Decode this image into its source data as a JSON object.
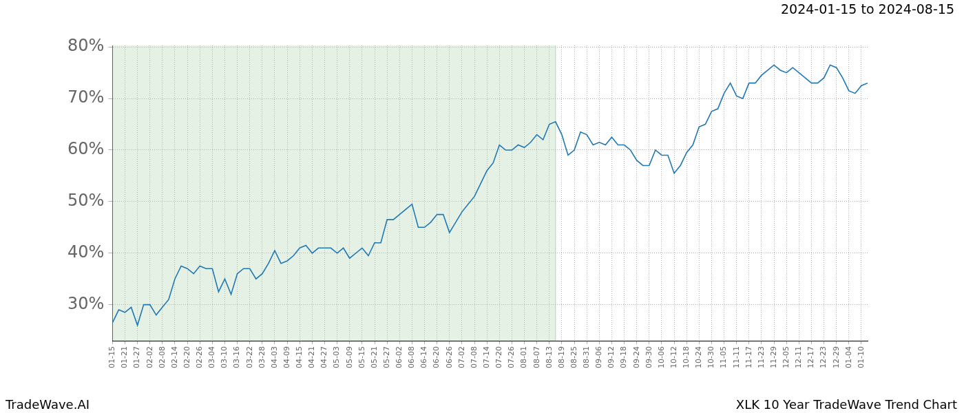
{
  "chart_data": {
    "type": "line",
    "title": "2024-01-15 to 2024-08-15",
    "footer_left": "TradeWave.AI",
    "footer_right": "XLK 10 Year TradeWave Trend Chart",
    "categories": [
      "01-15",
      null,
      "01-21",
      null,
      "01-27",
      null,
      "02-02",
      null,
      "02-08",
      null,
      "02-14",
      null,
      "02-20",
      null,
      "02-26",
      null,
      "03-04",
      null,
      "03-10",
      null,
      "03-16",
      null,
      "03-22",
      null,
      "03-28",
      null,
      "04-03",
      null,
      "04-09",
      null,
      "04-15",
      null,
      "04-21",
      null,
      "04-27",
      null,
      "05-03",
      null,
      "05-09",
      null,
      "05-15",
      null,
      "05-21",
      null,
      "05-27",
      null,
      "06-02",
      null,
      "06-08",
      null,
      "06-14",
      null,
      "06-20",
      null,
      "06-26",
      null,
      "07-02",
      null,
      "07-08",
      null,
      "07-14",
      null,
      "07-20",
      null,
      "07-26",
      null,
      "08-01",
      null,
      "08-07",
      null,
      "08-13",
      null,
      "08-19",
      null,
      "08-25",
      null,
      "08-31",
      null,
      "09-06",
      null,
      "09-12",
      null,
      "09-18",
      null,
      "09-24",
      null,
      "09-30",
      null,
      "10-06",
      null,
      "10-12",
      null,
      "10-18",
      null,
      "10-24",
      null,
      "10-30",
      null,
      "11-05",
      null,
      "11-11",
      null,
      "11-17",
      null,
      "11-23",
      null,
      "11-29",
      null,
      "12-05",
      null,
      "12-11",
      null,
      "12-17",
      null,
      "12-23",
      null,
      "12-29",
      null,
      "01-04",
      null,
      "01-10",
      null
    ],
    "values": [
      26.5,
      29,
      28.5,
      29.5,
      26,
      30,
      30,
      28,
      29.5,
      31,
      35,
      37.5,
      37,
      36,
      37.5,
      37,
      37,
      32.5,
      35,
      32,
      36,
      37,
      37,
      35,
      36,
      38,
      40.5,
      38,
      38.5,
      39.5,
      41,
      41.5,
      40,
      41,
      41,
      41,
      40,
      41,
      39,
      40,
      41,
      39.5,
      42,
      42,
      46.5,
      46.5,
      47.5,
      48.5,
      49.5,
      45,
      45,
      46,
      47.5,
      47.5,
      44,
      46,
      48,
      49.5,
      51,
      53.5,
      56,
      57.5,
      61,
      60,
      60,
      61,
      60.5,
      61.5,
      63,
      62,
      65,
      65.5,
      63,
      59,
      60,
      63.5,
      63,
      61,
      61.5,
      61,
      62.5,
      61,
      61,
      60,
      58,
      57,
      57,
      60,
      59,
      59,
      55.5,
      57,
      59.5,
      61,
      64.5,
      65,
      67.5,
      68,
      71,
      73,
      70.5,
      70,
      73,
      73,
      74.5,
      75.5,
      76.5,
      75.5,
      75,
      76,
      75,
      74,
      73,
      73,
      74,
      76.5,
      76,
      74,
      71.5,
      71,
      72.5,
      73
    ],
    "color": "#1f77b4",
    "shaded_range": [
      0,
      71
    ],
    "ylim": [
      23,
      80.3
    ],
    "yticks": [
      {
        "value": 30,
        "label": "30%"
      },
      {
        "value": 40,
        "label": "40%"
      },
      {
        "value": 50,
        "label": "50%"
      },
      {
        "value": 60,
        "label": "60%"
      },
      {
        "value": 70,
        "label": "70%"
      },
      {
        "value": 80,
        "label": "80%"
      }
    ],
    "grid": true
  }
}
